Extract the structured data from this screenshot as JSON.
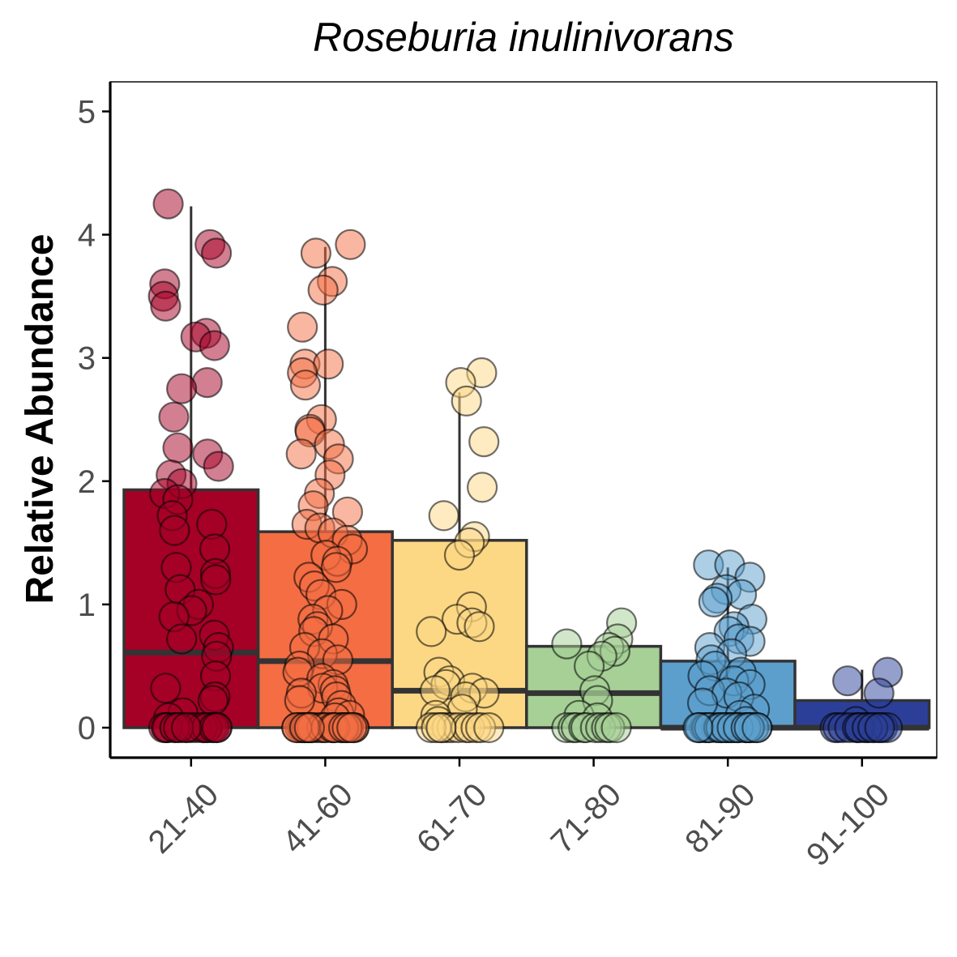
{
  "chart_data": {
    "type": "bar",
    "title": "Roseburia inulinivorans",
    "xlabel": "",
    "ylabel": "Relative Abundance",
    "ylim": [
      -0.25,
      5.25
    ],
    "yticks": [
      0,
      1,
      2,
      3,
      4,
      5
    ],
    "grid": false,
    "legend": "none",
    "categories": [
      "21-40",
      "41-60",
      "61-70",
      "71-80",
      "81-90",
      "91-100"
    ],
    "values": [
      1.93,
      1.59,
      1.52,
      0.66,
      0.54,
      0.22
    ],
    "medians": [
      0.61,
      0.54,
      0.3,
      0.28,
      0.0,
      0.0
    ],
    "whisker_max": [
      4.23,
      3.9,
      2.72,
      0.66,
      1.3,
      0.47
    ],
    "colors": [
      "#a50026",
      "#f46d43",
      "#fdd884",
      "#a6d096",
      "#5c9fcd",
      "#2c3f98"
    ],
    "points": [
      [
        4.25,
        3.92,
        3.85,
        3.6,
        3.5,
        3.42,
        3.2,
        3.17,
        3.1,
        2.8,
        2.75,
        2.52,
        2.27,
        2.22,
        2.12,
        2.05,
        1.98,
        1.9,
        1.85,
        1.72,
        1.65,
        1.6,
        1.45,
        1.3,
        1.25,
        1.2,
        1.12,
        1.0,
        0.95,
        0.9,
        0.75,
        0.72,
        0.65,
        0.58,
        0.42,
        0.32,
        0.25,
        0.22,
        0.12,
        0.08,
        0,
        0,
        0,
        0,
        0,
        0,
        0,
        0,
        0,
        0,
        0,
        0,
        0,
        0,
        0,
        0,
        0,
        0,
        0,
        0
      ],
      [
        3.92,
        3.85,
        3.62,
        3.55,
        3.25,
        2.95,
        2.95,
        2.88,
        2.78,
        2.5,
        2.42,
        2.4,
        2.3,
        2.22,
        2.18,
        2.05,
        1.9,
        1.8,
        1.75,
        1.65,
        1.62,
        1.58,
        1.52,
        1.45,
        1.4,
        1.35,
        1.3,
        1.22,
        1.15,
        1.08,
        1.0,
        0.95,
        0.88,
        0.82,
        0.78,
        0.72,
        0.65,
        0.6,
        0.55,
        0.5,
        0.45,
        0.4,
        0.35,
        0.32,
        0.3,
        0.28,
        0.25,
        0.22,
        0.18,
        0.12,
        0.1,
        0.08,
        0,
        0,
        0,
        0,
        0,
        0,
        0,
        0,
        0,
        0,
        0,
        0,
        0,
        0,
        0,
        0,
        0,
        0,
        0,
        0,
        0,
        0,
        0,
        0,
        0,
        0,
        0,
        0
      ],
      [
        2.88,
        2.8,
        2.65,
        2.32,
        1.95,
        1.72,
        1.55,
        1.5,
        1.4,
        0.98,
        0.88,
        0.85,
        0.82,
        0.78,
        0.45,
        0.38,
        0.35,
        0.32,
        0.3,
        0.28,
        0.25,
        0.15,
        0.1,
        0.05,
        0,
        0,
        0,
        0,
        0,
        0,
        0,
        0,
        0,
        0,
        0,
        0
      ],
      [
        0.85,
        0.72,
        0.68,
        0.65,
        0.62,
        0.58,
        0.5,
        0.3,
        0.22,
        0.1,
        0.08,
        0,
        0,
        0,
        0,
        0,
        0,
        0,
        0,
        0,
        0
      ],
      [
        1.32,
        1.32,
        1.22,
        1.12,
        1.08,
        1.05,
        1.02,
        0.88,
        0.82,
        0.78,
        0.72,
        0.7,
        0.65,
        0.6,
        0.55,
        0.5,
        0.45,
        0.42,
        0.38,
        0.35,
        0.3,
        0.28,
        0.25,
        0.2,
        0.15,
        0.1,
        0.05,
        0,
        0,
        0,
        0,
        0,
        0,
        0,
        0,
        0,
        0,
        0,
        0,
        0,
        0,
        0,
        0,
        0,
        0,
        0,
        0,
        0,
        0,
        0,
        0,
        0,
        0,
        0,
        0,
        0
      ],
      [
        0.45,
        0.38,
        0.28,
        0.05,
        0,
        0,
        0,
        0,
        0,
        0,
        0,
        0,
        0,
        0,
        0,
        0,
        0,
        0,
        0,
        0
      ]
    ]
  }
}
